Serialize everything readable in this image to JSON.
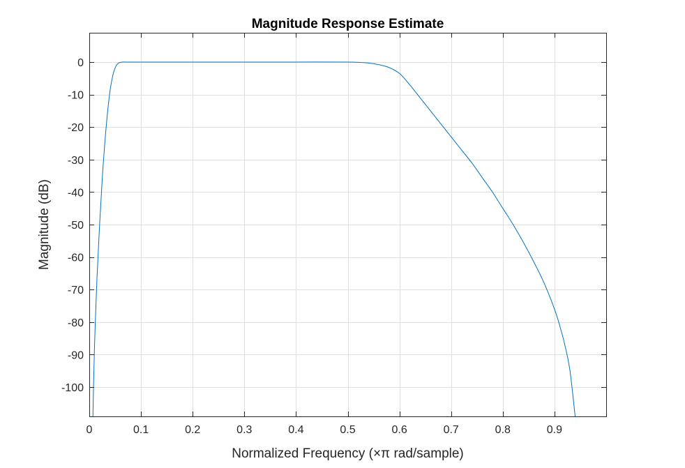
{
  "chart_data": {
    "type": "line",
    "title": "Magnitude Response Estimate",
    "xlabel": "Normalized Frequency (×π rad/sample)",
    "ylabel": "Magnitude (dB)",
    "xlim": [
      0,
      1
    ],
    "ylim": [
      -109,
      9
    ],
    "xticks": [
      0,
      0.1,
      0.2,
      0.3,
      0.4,
      0.5,
      0.6,
      0.7,
      0.8,
      0.9
    ],
    "xtick_labels": [
      "0",
      "0.1",
      "0.2",
      "0.3",
      "0.4",
      "0.5",
      "0.6",
      "0.7",
      "0.8",
      "0.9"
    ],
    "yticks": [
      0,
      -10,
      -20,
      -30,
      -40,
      -50,
      -60,
      -70,
      -80,
      -90,
      -100
    ],
    "ytick_labels": [
      "0",
      "-10",
      "-20",
      "-30",
      "-40",
      "-50",
      "-60",
      "-70",
      "-80",
      "-90",
      "-100"
    ],
    "grid": true,
    "series": [
      {
        "color": "#0072BD",
        "x": [
          0.007,
          0.01,
          0.015,
          0.02,
          0.025,
          0.03,
          0.035,
          0.04,
          0.045,
          0.05,
          0.055,
          0.06,
          0.065,
          0.07,
          0.1,
          0.2,
          0.3,
          0.4,
          0.5,
          0.52,
          0.54,
          0.56,
          0.58,
          0.6,
          0.62,
          0.64,
          0.66,
          0.68,
          0.7,
          0.72,
          0.74,
          0.76,
          0.78,
          0.8,
          0.82,
          0.84,
          0.86,
          0.88,
          0.9,
          0.91,
          0.92,
          0.93,
          0.94
        ],
        "y": [
          -109,
          -88,
          -66,
          -50,
          -36,
          -25,
          -16,
          -9,
          -4.5,
          -1.8,
          -0.5,
          -0.1,
          0,
          0,
          0,
          0,
          0,
          0,
          0,
          -0.1,
          -0.3,
          -0.8,
          -1.7,
          -3.5,
          -7,
          -11,
          -15,
          -19,
          -23,
          -27,
          -31,
          -35.5,
          -40,
          -45,
          -50,
          -55.5,
          -61.5,
          -68,
          -76,
          -81,
          -87,
          -95,
          -109
        ]
      }
    ]
  }
}
